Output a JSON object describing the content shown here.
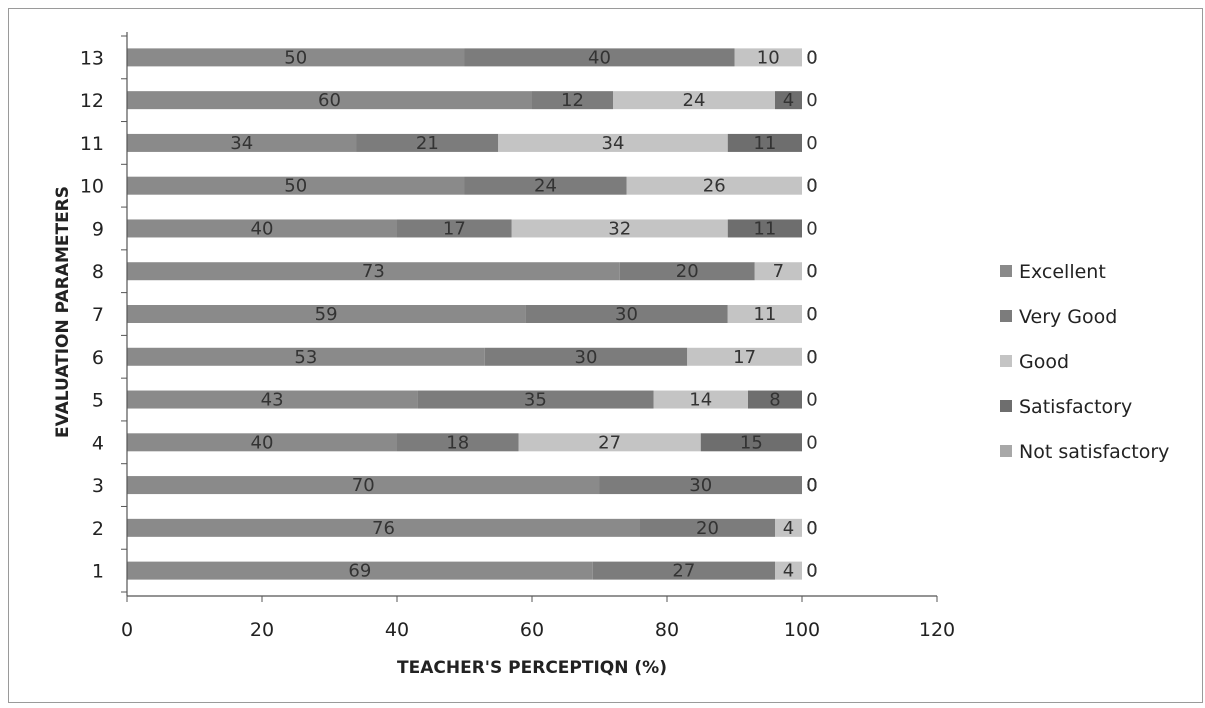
{
  "chart_data": {
    "type": "bar",
    "orientation": "horizontal",
    "stacked": true,
    "title": "",
    "xlabel": "TEACHER'S PERCEPTIQN (%)",
    "ylabel": "EVALUATION PARAMETERS",
    "xlim": [
      0,
      120
    ],
    "xticks": [
      0,
      20,
      40,
      60,
      80,
      100,
      120
    ],
    "grid": false,
    "legend_position": "right",
    "categories": [
      "1",
      "2",
      "3",
      "4",
      "5",
      "6",
      "7",
      "8",
      "9",
      "10",
      "11",
      "12",
      "13"
    ],
    "series": [
      {
        "name": "Excellent",
        "color": "#8a8a8a",
        "values": [
          69,
          76,
          70,
          40,
          43,
          53,
          59,
          73,
          40,
          50,
          34,
          60,
          50
        ]
      },
      {
        "name": "Very Good",
        "color": "#7c7c7c",
        "values": [
          27,
          20,
          30,
          18,
          35,
          30,
          30,
          20,
          17,
          24,
          21,
          12,
          40
        ]
      },
      {
        "name": "Good",
        "color": "#c4c4c4",
        "values": [
          4,
          4,
          0,
          27,
          14,
          17,
          11,
          7,
          32,
          26,
          34,
          24,
          10
        ]
      },
      {
        "name": "Satisfactory",
        "color": "#6e6e6e",
        "values": [
          0,
          0,
          0,
          15,
          8,
          0,
          0,
          0,
          11,
          0,
          11,
          4,
          0
        ]
      },
      {
        "name": "Not satisfactory",
        "color": "#a8a8a8",
        "values": [
          0,
          0,
          0,
          0,
          0,
          0,
          0,
          0,
          0,
          0,
          0,
          0,
          0
        ]
      }
    ]
  }
}
